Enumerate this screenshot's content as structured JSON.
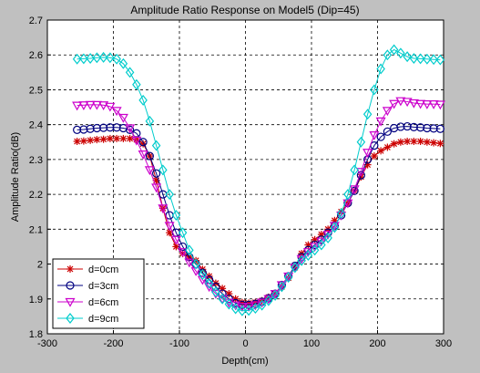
{
  "chart_data": {
    "type": "line",
    "title": "Amplitude Ratio Response on Model5 (Dip=45)",
    "xlabel": "Depth(cm)",
    "ylabel": "Amplitude Ratio(dB)",
    "xlim": [
      -300,
      300
    ],
    "ylim": [
      1.8,
      2.7
    ],
    "xticks": [
      -300,
      -200,
      -100,
      0,
      100,
      200,
      300
    ],
    "yticks": [
      1.8,
      1.9,
      2.0,
      2.1,
      2.2,
      2.3,
      2.4,
      2.5,
      2.6,
      2.7
    ],
    "xtick_labels": [
      "-300",
      "-200",
      "-100",
      "0",
      "100",
      "200",
      "300"
    ],
    "ytick_labels": [
      "1.8",
      "1.9",
      "2",
      "2.1",
      "2.2",
      "2.3",
      "2.4",
      "2.5",
      "2.6",
      "2.7"
    ],
    "grid": true,
    "legend_position": "bottom-left",
    "series": [
      {
        "name": "d=0cm",
        "color": "#cc0000",
        "marker": "asterisk",
        "x": [
          -255,
          -245,
          -235,
          -225,
          -215,
          -205,
          -195,
          -185,
          -175,
          -165,
          -155,
          -145,
          -135,
          -125,
          -115,
          -105,
          -95,
          -85,
          -75,
          -65,
          -55,
          -45,
          -35,
          -25,
          -15,
          -5,
          5,
          15,
          25,
          35,
          45,
          55,
          65,
          75,
          85,
          95,
          105,
          115,
          125,
          135,
          145,
          155,
          165,
          175,
          185,
          195,
          205,
          215,
          225,
          235,
          245,
          255,
          265,
          275,
          285,
          295
        ],
        "y": [
          2.352,
          2.353,
          2.355,
          2.357,
          2.358,
          2.36,
          2.36,
          2.36,
          2.36,
          2.357,
          2.345,
          2.31,
          2.24,
          2.16,
          2.09,
          2.05,
          2.03,
          2.02,
          2.01,
          1.985,
          1.965,
          1.945,
          1.93,
          1.915,
          1.9,
          1.89,
          1.888,
          1.89,
          1.895,
          1.905,
          1.915,
          1.935,
          1.96,
          1.99,
          2.03,
          2.055,
          2.07,
          2.085,
          2.1,
          2.125,
          2.15,
          2.175,
          2.21,
          2.25,
          2.285,
          2.31,
          2.325,
          2.335,
          2.345,
          2.35,
          2.352,
          2.352,
          2.352,
          2.35,
          2.348,
          2.346
        ]
      },
      {
        "name": "d=3cm",
        "color": "#000080",
        "marker": "circle",
        "x": [
          -255,
          -245,
          -235,
          -225,
          -215,
          -205,
          -195,
          -185,
          -175,
          -165,
          -155,
          -145,
          -135,
          -125,
          -115,
          -105,
          -95,
          -85,
          -75,
          -65,
          -55,
          -45,
          -35,
          -25,
          -15,
          -5,
          5,
          15,
          25,
          35,
          45,
          55,
          65,
          75,
          85,
          95,
          105,
          115,
          125,
          135,
          145,
          155,
          165,
          175,
          185,
          195,
          205,
          215,
          225,
          235,
          245,
          255,
          265,
          275,
          285,
          295
        ],
        "y": [
          2.385,
          2.386,
          2.388,
          2.39,
          2.391,
          2.392,
          2.392,
          2.39,
          2.385,
          2.375,
          2.35,
          2.31,
          2.26,
          2.2,
          2.14,
          2.09,
          2.05,
          2.02,
          2.0,
          1.975,
          1.955,
          1.935,
          1.915,
          1.9,
          1.888,
          1.883,
          1.883,
          1.886,
          1.892,
          1.902,
          1.915,
          1.94,
          1.965,
          1.995,
          2.02,
          2.04,
          2.055,
          2.07,
          2.09,
          2.11,
          2.14,
          2.175,
          2.21,
          2.255,
          2.3,
          2.34,
          2.365,
          2.38,
          2.39,
          2.394,
          2.395,
          2.393,
          2.392,
          2.39,
          2.389,
          2.388
        ]
      },
      {
        "name": "d=6cm",
        "color": "#cc00cc",
        "marker": "triangle-down",
        "x": [
          -255,
          -245,
          -235,
          -225,
          -215,
          -205,
          -195,
          -185,
          -175,
          -165,
          -155,
          -145,
          -135,
          -125,
          -115,
          -105,
          -95,
          -85,
          -75,
          -65,
          -55,
          -45,
          -35,
          -25,
          -15,
          -5,
          5,
          15,
          25,
          35,
          45,
          55,
          65,
          75,
          85,
          95,
          105,
          115,
          125,
          135,
          145,
          155,
          165,
          175,
          185,
          195,
          205,
          215,
          225,
          235,
          245,
          255,
          265,
          275,
          285,
          295
        ],
        "y": [
          2.455,
          2.456,
          2.457,
          2.457,
          2.456,
          2.452,
          2.44,
          2.42,
          2.39,
          2.355,
          2.315,
          2.27,
          2.22,
          2.16,
          2.11,
          2.07,
          2.035,
          2.005,
          1.98,
          1.955,
          1.935,
          1.915,
          1.9,
          1.89,
          1.882,
          1.878,
          1.878,
          1.882,
          1.89,
          1.9,
          1.915,
          1.94,
          1.965,
          1.99,
          2.015,
          2.035,
          2.05,
          2.065,
          2.085,
          2.11,
          2.14,
          2.175,
          2.215,
          2.265,
          2.32,
          2.37,
          2.41,
          2.44,
          2.46,
          2.468,
          2.466,
          2.462,
          2.46,
          2.459,
          2.459,
          2.458
        ]
      },
      {
        "name": "d=9cm",
        "color": "#00cccc",
        "marker": "diamond",
        "x": [
          -255,
          -245,
          -235,
          -225,
          -215,
          -205,
          -195,
          -185,
          -175,
          -165,
          -155,
          -145,
          -135,
          -125,
          -115,
          -105,
          -95,
          -85,
          -75,
          -65,
          -55,
          -45,
          -35,
          -25,
          -15,
          -5,
          5,
          15,
          25,
          35,
          45,
          55,
          65,
          75,
          85,
          95,
          105,
          115,
          125,
          135,
          145,
          155,
          165,
          175,
          185,
          195,
          205,
          215,
          225,
          235,
          245,
          255,
          265,
          275,
          285,
          295
        ],
        "y": [
          2.588,
          2.589,
          2.59,
          2.592,
          2.593,
          2.592,
          2.588,
          2.575,
          2.55,
          2.515,
          2.47,
          2.41,
          2.34,
          2.27,
          2.2,
          2.14,
          2.09,
          2.04,
          2.0,
          1.97,
          1.945,
          1.92,
          1.9,
          1.885,
          1.872,
          1.866,
          1.867,
          1.873,
          1.882,
          1.895,
          1.91,
          1.935,
          1.962,
          1.99,
          2.01,
          2.025,
          2.04,
          2.055,
          2.075,
          2.105,
          2.145,
          2.2,
          2.27,
          2.35,
          2.43,
          2.5,
          2.56,
          2.6,
          2.615,
          2.605,
          2.595,
          2.59,
          2.589,
          2.588,
          2.587,
          2.586
        ]
      }
    ]
  }
}
